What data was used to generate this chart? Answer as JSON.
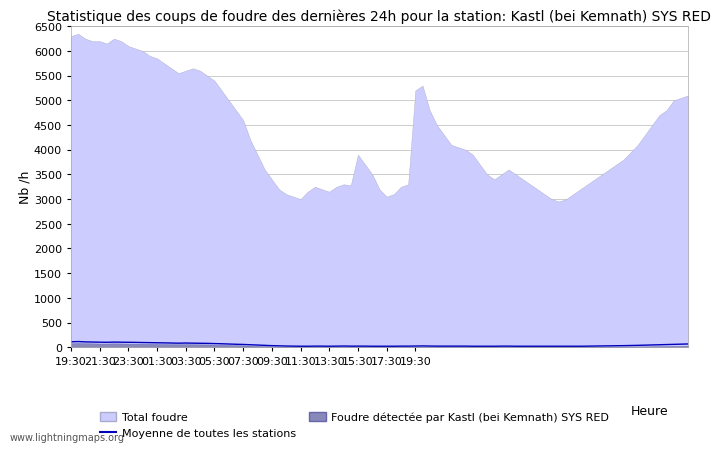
{
  "title": "Statistique des coups de foudre des dernières 24h pour la station: Kastl (bei Kemnath) SYS RED",
  "ylabel": "Nb /h",
  "xlabel_right": "Heure",
  "watermark": "www.lightningmaps.org",
  "ylim": [
    0,
    6500
  ],
  "yticks": [
    0,
    500,
    1000,
    1500,
    2000,
    2500,
    3000,
    3500,
    4000,
    4500,
    5000,
    5500,
    6000,
    6500
  ],
  "xtick_labels": [
    "19:30",
    "21:30",
    "23:30",
    "01:30",
    "03:30",
    "05:30",
    "07:30",
    "09:30",
    "11:30",
    "13:30",
    "15:30",
    "17:30",
    "19:30"
  ],
  "xtick_positions": [
    0,
    4,
    8,
    12,
    16,
    20,
    24,
    28,
    32,
    36,
    40,
    44,
    48
  ],
  "total_foudre_color": "#ccccff",
  "total_foudre_edge": "#aaaacc",
  "detected_color": "#8888bb",
  "detected_edge": "#6666aa",
  "mean_line_color": "#0000bb",
  "background_color": "#ffffff",
  "grid_color": "#cccccc",
  "title_fontsize": 10,
  "tick_fontsize": 8,
  "label_fontsize": 9,
  "legend_fontsize": 8,
  "total_foudre": [
    6300,
    6350,
    6250,
    6200,
    6200,
    6150,
    6250,
    6200,
    6100,
    6050,
    6000,
    5900,
    5850,
    5750,
    5650,
    5550,
    5600,
    5650,
    5600,
    5500,
    5400,
    5200,
    5000,
    4800,
    4600,
    4200,
    3900,
    3600,
    3400,
    3200,
    3100,
    3050,
    3000,
    3150,
    3250,
    3200,
    3150,
    3250,
    3300,
    3280,
    3900,
    3700,
    3500,
    3200,
    3050,
    3100,
    3250,
    3300,
    5200,
    5300,
    4800,
    4500,
    4300,
    4100,
    4050,
    4000,
    3900,
    3700,
    3500,
    3400,
    3500,
    3600,
    3500,
    3400,
    3300,
    3200,
    3100,
    3000,
    2950,
    3000,
    3100,
    3200,
    3300,
    3400,
    3500,
    3600,
    3700,
    3800,
    3950,
    4100,
    4300,
    4500,
    4700,
    4800,
    5000,
    5050,
    5100
  ],
  "detected_foudre": [
    80,
    85,
    80,
    78,
    75,
    75,
    78,
    76,
    74,
    72,
    70,
    68,
    66,
    64,
    62,
    60,
    62,
    60,
    58,
    56,
    52,
    48,
    44,
    40,
    36,
    30,
    25,
    20,
    16,
    12,
    10,
    9,
    8,
    8,
    9,
    9,
    8,
    9,
    10,
    9,
    9,
    9,
    8,
    8,
    8,
    8,
    9,
    9,
    10,
    11,
    10,
    9,
    9,
    9,
    9,
    9,
    8,
    8,
    8,
    8,
    9,
    9,
    8,
    8,
    8,
    8,
    8,
    8,
    8,
    8,
    8,
    8,
    9,
    10,
    11,
    12,
    13,
    14,
    15,
    16,
    17,
    18,
    20,
    22,
    25,
    27,
    30
  ],
  "mean_line": [
    110,
    115,
    108,
    105,
    102,
    100,
    104,
    102,
    100,
    98,
    95,
    93,
    90,
    88,
    85,
    82,
    85,
    82,
    80,
    78,
    74,
    70,
    65,
    60,
    56,
    50,
    44,
    38,
    32,
    28,
    24,
    22,
    20,
    20,
    22,
    22,
    20,
    22,
    24,
    22,
    22,
    22,
    20,
    20,
    20,
    20,
    22,
    22,
    24,
    26,
    24,
    22,
    22,
    22,
    22,
    22,
    20,
    20,
    20,
    20,
    22,
    22,
    20,
    20,
    20,
    20,
    20,
    20,
    20,
    20,
    20,
    20,
    22,
    24,
    26,
    28,
    30,
    32,
    35,
    38,
    42,
    46,
    50,
    54,
    58,
    62,
    66
  ]
}
